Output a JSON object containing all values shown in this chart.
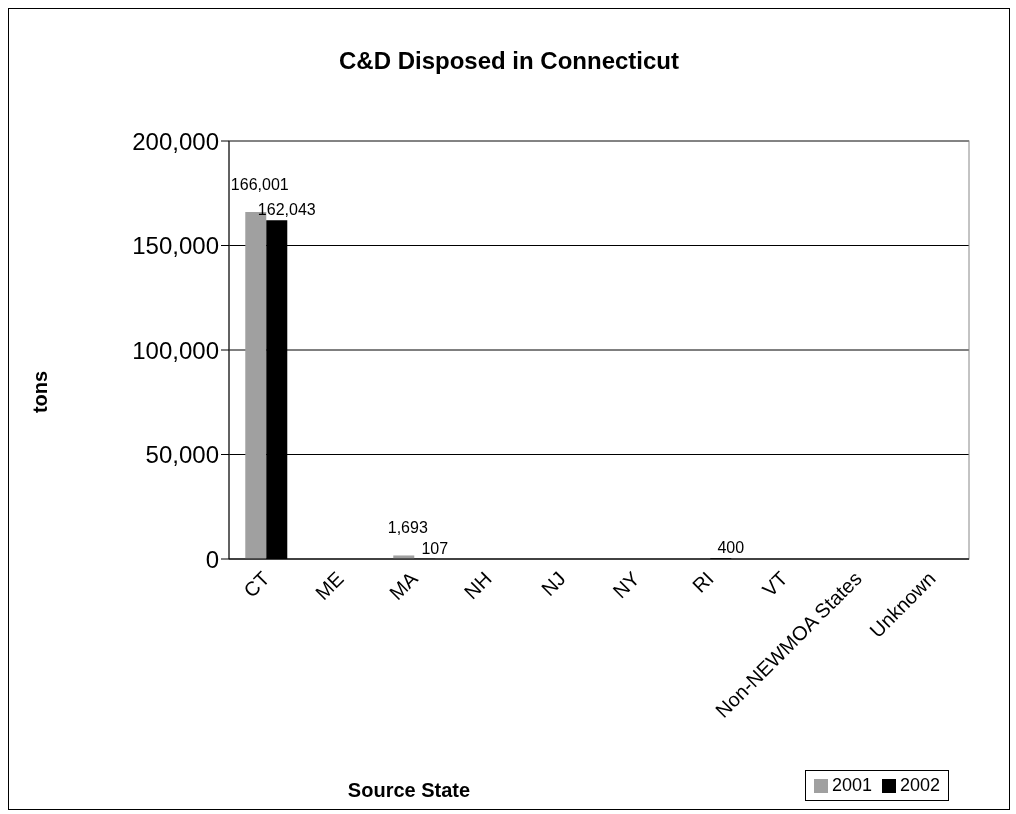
{
  "chart_data": {
    "type": "bar",
    "title": "C&D Disposed in Connecticut",
    "xlabel": "Source State",
    "ylabel": "tons",
    "categories": [
      "CT",
      "ME",
      "MA",
      "NH",
      "NJ",
      "NY",
      "RI",
      "VT",
      "Non-NEWMOA States",
      "Unknown"
    ],
    "series": [
      {
        "name": "2001",
        "color": "#a0a0a0",
        "values": [
          166001,
          null,
          1693,
          null,
          null,
          null,
          null,
          null,
          null,
          null
        ],
        "value_labels": [
          "166,001",
          null,
          "1,693",
          null,
          null,
          null,
          null,
          null,
          null,
          null
        ]
      },
      {
        "name": "2002",
        "color": "#000000",
        "values": [
          162043,
          null,
          107,
          null,
          null,
          null,
          400,
          null,
          null,
          null
        ],
        "value_labels": [
          "162,043",
          null,
          "107",
          null,
          null,
          null,
          "400",
          null,
          null,
          null
        ]
      }
    ],
    "ylim": [
      0,
      200000
    ],
    "yticks": [
      0,
      {
        "value": 50000,
        "label": "50,000"
      },
      {
        "value": 100000,
        "label": "100,000"
      },
      {
        "value": 150000,
        "label": "150,000"
      },
      {
        "value": 200000,
        "label": "200,000"
      }
    ],
    "grid": "y",
    "legend": "bottom right"
  }
}
